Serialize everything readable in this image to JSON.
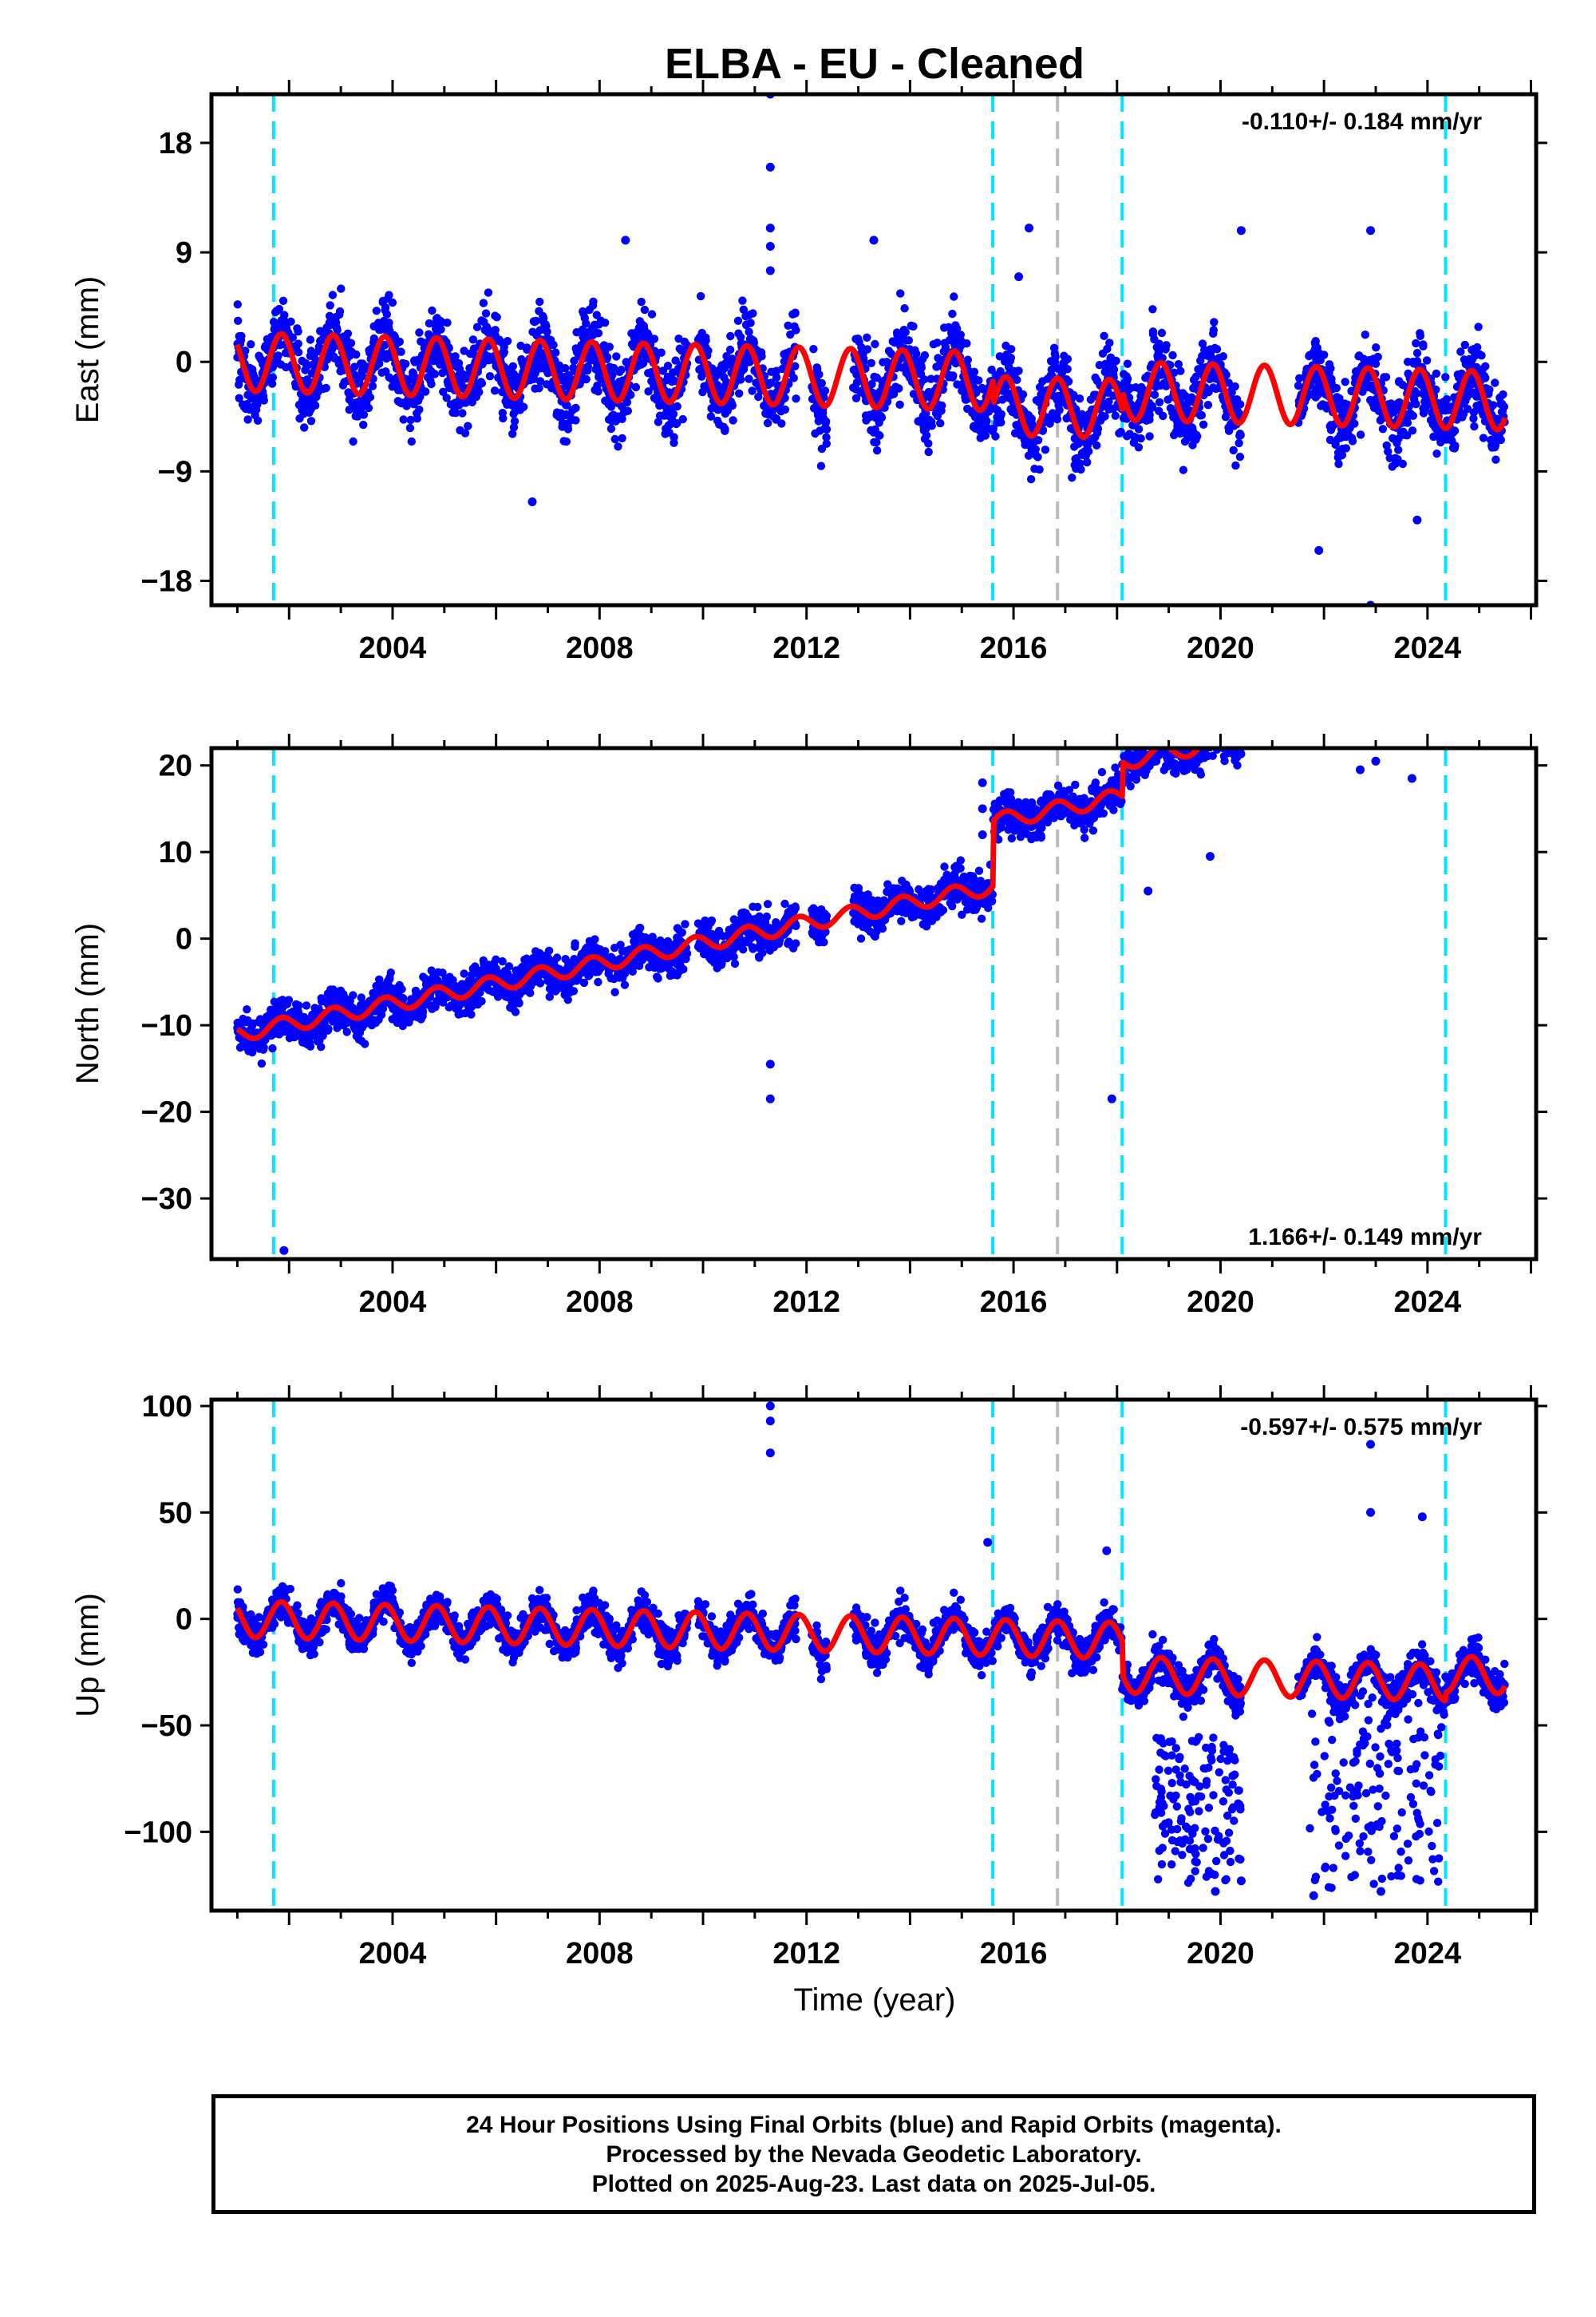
{
  "figure": {
    "title": "ELBA  - EU - Cleaned",
    "xlabel": "Time (year)",
    "colors": {
      "data": "#0000ff",
      "model": "#ff0000",
      "equipment_change": "#00e5ff",
      "other_event": "#bbbbbb"
    }
  },
  "chart_data": [
    {
      "type": "scatter",
      "component": "East",
      "ylabel": "East (mm)",
      "rate_label": "-0.110+/- 0.184 mm/yr",
      "rate_position": "top-right",
      "ylim": [
        -20,
        22
      ],
      "yticks": [
        -18,
        -9,
        0,
        9,
        18
      ],
      "xlim": [
        2000.5,
        2026.1
      ],
      "xticks": [
        2004,
        2008,
        2012,
        2016,
        2020,
        2024
      ],
      "grid": false,
      "data_range": [
        2001.0,
        2025.5
      ],
      "gaps": [
        [
          2009.7,
          2009.9
        ],
        [
          2011.8,
          2012.1
        ],
        [
          2012.4,
          2012.9
        ],
        [
          2020.4,
          2021.5
        ]
      ],
      "model": {
        "offsets": [
          [
            2001.0,
            0.0
          ],
          [
            2015.6,
            -2.0
          ],
          [
            2018.1,
            -0.5
          ],
          [
            2024.35,
            -0.5
          ]
        ],
        "rate": -0.11,
        "amplitude": 2.4,
        "phase_year": 0.6
      },
      "scatter_spread": 2.6,
      "outliers": [
        [
          2011.3,
          22.0
        ],
        [
          2011.3,
          16.0
        ],
        [
          2011.3,
          11.0
        ],
        [
          2011.3,
          9.5
        ],
        [
          2011.3,
          7.5
        ],
        [
          2006.7,
          -11.5
        ],
        [
          2016.3,
          11.0
        ],
        [
          2016.1,
          7.0
        ],
        [
          2020.4,
          10.8
        ],
        [
          2022.9,
          10.8
        ],
        [
          2021.9,
          -15.5
        ],
        [
          2022.9,
          -20.0
        ],
        [
          2023.8,
          -13.0
        ],
        [
          2013.3,
          10.0
        ],
        [
          2008.5,
          10.0
        ]
      ],
      "vlines": [
        {
          "x": 2001.7,
          "kind": "equipment_change"
        },
        {
          "x": 2015.6,
          "kind": "equipment_change"
        },
        {
          "x": 2016.85,
          "kind": "other_event"
        },
        {
          "x": 2018.1,
          "kind": "equipment_change"
        },
        {
          "x": 2024.35,
          "kind": "equipment_change"
        }
      ]
    },
    {
      "type": "scatter",
      "component": "North",
      "ylabel": "North (mm)",
      "rate_label": "1.166+/- 0.149 mm/yr",
      "rate_position": "bottom-right",
      "ylim": [
        -37,
        22
      ],
      "yticks": [
        -30,
        -20,
        -10,
        0,
        10,
        20
      ],
      "xlim": [
        2000.5,
        2026.1
      ],
      "xticks": [
        2004,
        2008,
        2012,
        2016,
        2020,
        2024
      ],
      "grid": false,
      "data_range": [
        2001.0,
        2025.5
      ],
      "gaps": [
        [
          2009.7,
          2009.9
        ],
        [
          2011.8,
          2012.1
        ],
        [
          2012.4,
          2012.9
        ],
        [
          2020.4,
          2021.5
        ]
      ],
      "model": {
        "offsets": [
          [
            2001.0,
            -11.0
          ],
          [
            2015.6,
            -3.5
          ],
          [
            2018.1,
            0.5
          ],
          [
            2021.5,
            3.0
          ],
          [
            2024.35,
            3.0
          ]
        ],
        "rate": 1.166,
        "amplitude": 0.9,
        "phase_year": 0.6
      },
      "scatter_spread": 1.9,
      "outliers": [
        [
          2001.9,
          -36.0
        ],
        [
          2011.3,
          -14.5
        ],
        [
          2011.3,
          -18.5
        ],
        [
          2015.4,
          18.0
        ],
        [
          2015.4,
          15.0
        ],
        [
          2015.4,
          12.0
        ],
        [
          2017.9,
          -18.5
        ],
        [
          2018.6,
          5.5
        ],
        [
          2019.8,
          9.5
        ],
        [
          2023.0,
          20.5
        ],
        [
          2022.7,
          19.5
        ],
        [
          2023.7,
          18.5
        ]
      ],
      "vlines": [
        {
          "x": 2001.7,
          "kind": "equipment_change"
        },
        {
          "x": 2015.6,
          "kind": "equipment_change"
        },
        {
          "x": 2016.85,
          "kind": "other_event"
        },
        {
          "x": 2018.1,
          "kind": "equipment_change"
        },
        {
          "x": 2024.35,
          "kind": "equipment_change"
        }
      ]
    },
    {
      "type": "scatter",
      "component": "Up",
      "ylabel": "Up (mm)",
      "rate_label": "-0.597+/- 0.575 mm/yr",
      "rate_position": "top-right",
      "ylim": [
        -137,
        103
      ],
      "yticks": [
        -100,
        -50,
        0,
        50,
        100
      ],
      "xlim": [
        2000.5,
        2026.1
      ],
      "xticks": [
        2004,
        2008,
        2012,
        2016,
        2020,
        2024
      ],
      "grid": false,
      "data_range": [
        2001.0,
        2025.5
      ],
      "gaps": [
        [
          2009.7,
          2009.9
        ],
        [
          2011.8,
          2012.1
        ],
        [
          2012.4,
          2012.9
        ],
        [
          2020.4,
          2021.5
        ]
      ],
      "model": {
        "offsets": [
          [
            2001.0,
            0.0
          ],
          [
            2015.6,
            0.0
          ],
          [
            2018.1,
            -16.0
          ],
          [
            2021.5,
            -16.0
          ],
          [
            2024.35,
            -12.0
          ]
        ],
        "rate": -0.597,
        "amplitude": 8.5,
        "phase_year": 0.6
      },
      "scatter_spread": 7.0,
      "outliers": [
        [
          2011.3,
          100.0
        ],
        [
          2011.3,
          93.0
        ],
        [
          2011.3,
          78.0
        ],
        [
          2015.5,
          36.0
        ],
        [
          2017.8,
          32.0
        ],
        [
          2022.9,
          82.0
        ],
        [
          2022.9,
          50.0
        ],
        [
          2023.9,
          48.0
        ],
        [
          2019.9,
          -128.0
        ],
        [
          2020.4,
          -123.0
        ],
        [
          2021.8,
          -130.0
        ],
        [
          2023.1,
          -128.0
        ]
      ],
      "outlier_bursts": [
        [
          2018.7,
          2020.5,
          -125,
          -55
        ],
        [
          2021.7,
          2024.3,
          -130,
          -35
        ]
      ],
      "vlines": [
        {
          "x": 2001.7,
          "kind": "equipment_change"
        },
        {
          "x": 2015.6,
          "kind": "equipment_change"
        },
        {
          "x": 2016.85,
          "kind": "other_event"
        },
        {
          "x": 2018.1,
          "kind": "equipment_change"
        },
        {
          "x": 2024.35,
          "kind": "equipment_change"
        }
      ]
    }
  ],
  "footer": {
    "line1": "24 Hour Positions Using Final Orbits (blue) and Rapid Orbits (magenta).",
    "line2": "Processed by the Nevada Geodetic Laboratory.",
    "line3": "Plotted on 2025-Aug-23. Last data on 2025-Jul-05."
  }
}
